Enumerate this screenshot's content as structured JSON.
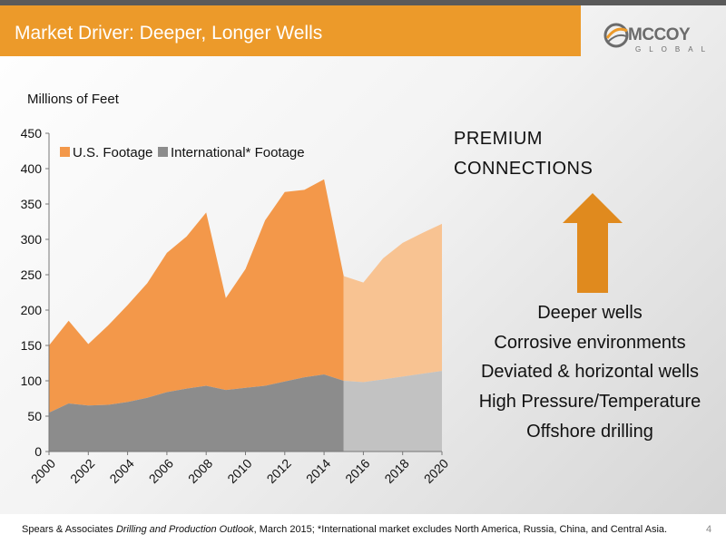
{
  "header": {
    "title": "Market Driver: Deeper, Longer Wells"
  },
  "logo": {
    "name": "MCCOY",
    "sub": "GLOBAL"
  },
  "chart_data": {
    "type": "area",
    "stacked": true,
    "ylabel": "Millions of Feet",
    "ylim": [
      0,
      450
    ],
    "yticks": [
      0,
      50,
      100,
      150,
      200,
      250,
      300,
      350,
      400,
      450
    ],
    "x": [
      2000,
      2001,
      2002,
      2003,
      2004,
      2005,
      2006,
      2007,
      2008,
      2009,
      2010,
      2011,
      2012,
      2013,
      2014,
      2015,
      2016,
      2017,
      2018,
      2019,
      2020
    ],
    "xtick_labels": [
      "2000",
      "2002",
      "2004",
      "2006",
      "2008",
      "2010",
      "2012",
      "2014",
      "2016",
      "2018",
      "2020"
    ],
    "forecast_from": 2015,
    "legend_position": "top-left",
    "grid": false,
    "series": [
      {
        "name": "International* Footage",
        "color": "#8c8c8c",
        "forecast_color": "#c2c2c2",
        "values": [
          55,
          68,
          65,
          66,
          70,
          76,
          84,
          89,
          93,
          87,
          90,
          93,
          99,
          105,
          109,
          100,
          98,
          102,
          106,
          110,
          114
        ]
      },
      {
        "name": "U.S. Footage",
        "color": "#f3984a",
        "forecast_color": "#f8c392",
        "values": [
          95,
          117,
          87,
          112,
          137,
          162,
          197,
          215,
          245,
          130,
          168,
          234,
          268,
          265,
          276,
          148,
          141,
          171,
          189,
          199,
          208
        ]
      }
    ]
  },
  "right_panel": {
    "premium_line1": "PREMIUM",
    "premium_line2": "CONNECTIONS",
    "drivers": [
      "Deeper wells",
      "Corrosive environments",
      "Deviated & horizontal wells",
      "High Pressure/Temperature",
      "Offshore drilling"
    ]
  },
  "footer": {
    "source": "Spears & Associates",
    "publication": "Drilling and Production Outlook",
    "rest": ", March 2015; *International market excludes North America, Russia, China, and Central Asia.",
    "page": "4"
  },
  "colors": {
    "accent": "#ec9a2a",
    "arrow": "#e08a1e"
  }
}
